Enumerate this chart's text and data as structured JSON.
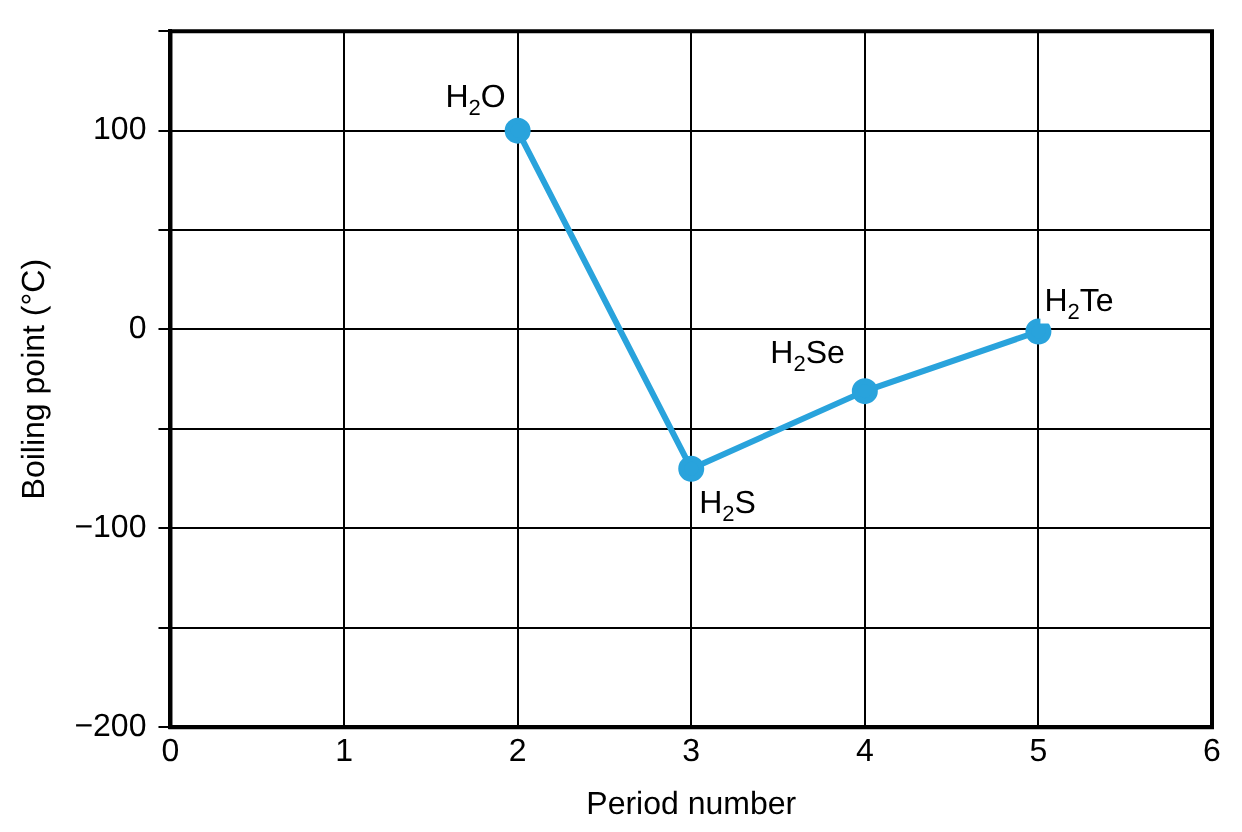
{
  "chart_data": {
    "type": "line",
    "xlabel": "Period number",
    "ylabel": "Boiling point (°C)",
    "x": [
      2,
      3,
      4,
      5
    ],
    "series": [
      {
        "color": "#29a3dc",
        "values": [
          100,
          -70,
          -31,
          -1
        ]
      }
    ],
    "xlim": [
      0,
      6
    ],
    "xticks": [
      0,
      1,
      2,
      3,
      4,
      5,
      6
    ],
    "ylim": [
      -200,
      150
    ],
    "yticks": [
      {
        "value": -200,
        "label": "−200"
      },
      {
        "value": -150,
        "label": null
      },
      {
        "value": -100,
        "label": "−100"
      },
      {
        "value": -50,
        "label": null
      },
      0,
      {
        "value": 50,
        "label": null
      },
      100,
      {
        "value": 150,
        "label": null
      }
    ],
    "grid": true,
    "marker": "circle",
    "line_style": "solid",
    "legend": false,
    "annotations": [
      {
        "text": "H$_{2}$O",
        "x": 2,
        "y": 100
      },
      {
        "text": "H$_{2}$S",
        "x": 3,
        "y": -70
      },
      {
        "text": "H$_{2}$Se",
        "x": 4,
        "y": -31
      },
      {
        "text": "H$_{2}$Te",
        "x": 5,
        "y": -1
      }
    ]
  }
}
